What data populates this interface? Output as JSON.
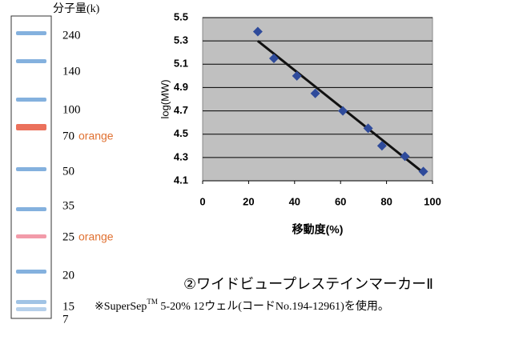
{
  "ladder": {
    "header": "分子量(k)",
    "bands": [
      {
        "label": "240",
        "color": "#6fa3d8"
      },
      {
        "label": "140",
        "color": "#6fa3d8"
      },
      {
        "label": "100",
        "color": "#6fa3d8"
      },
      {
        "label": "70",
        "note": "orange",
        "color": "#e8583f"
      },
      {
        "label": "50",
        "color": "#6fa3d8"
      },
      {
        "label": "35",
        "color": "#6fa3d8"
      },
      {
        "label": "25",
        "note": "orange",
        "color": "#f08a9a"
      },
      {
        "label": "20",
        "color": "#6fa3d8"
      },
      {
        "label": "15",
        "color": "#8fb8e0"
      },
      {
        "label": "7",
        "color": "#a9c8e8"
      }
    ]
  },
  "chart_data": {
    "type": "scatter",
    "x_label": "移動度(%)",
    "y_label": "log(MW)",
    "x": [
      24,
      31,
      41,
      49,
      61,
      72,
      78,
      88,
      96
    ],
    "values": [
      5.38,
      5.15,
      5.0,
      4.85,
      4.7,
      4.55,
      4.4,
      4.31,
      4.18
    ],
    "color": "#2f4b9b",
    "trendline": {
      "x": [
        24,
        96
      ],
      "y": [
        5.3,
        4.17
      ],
      "color": "#111111"
    },
    "xlim": [
      0,
      100
    ],
    "xticks": [
      0,
      20,
      40,
      60,
      80,
      100
    ],
    "ylim": [
      4.1,
      5.5
    ],
    "yticks": [
      4.1,
      4.3,
      4.5,
      4.7,
      4.9,
      5.1,
      5.3,
      5.5
    ],
    "grid": true,
    "background": "#c0c0c0"
  },
  "caption": {
    "title": "②ワイドビュープレステインマーカーⅡ",
    "note_prefix": "※SuperSep",
    "note_sup": "TM",
    "note_rest": " 5-20%  12ウェル(コードNo.194-12961)を使用。"
  }
}
